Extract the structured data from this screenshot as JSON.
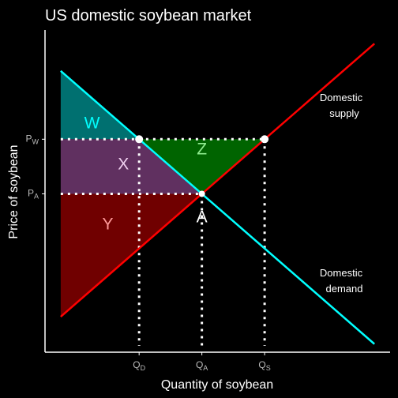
{
  "chart_data": {
    "type": "line",
    "title": "US domestic soybean market",
    "xlabel": "Quantity of soybean",
    "ylabel": "Price of soybean",
    "grid": false,
    "legend": "none",
    "x_ticks": [
      {
        "main": "Q",
        "sub": "D",
        "x": 3
      },
      {
        "main": "Q",
        "sub": "A",
        "x": 5
      },
      {
        "main": "Q",
        "sub": "S",
        "x": 7
      }
    ],
    "y_ticks": [
      {
        "main": "P",
        "sub": "W",
        "y": 7
      },
      {
        "main": "P",
        "sub": "A",
        "y": 5
      }
    ],
    "series": [
      {
        "name": "Domestic supply",
        "label_lines": [
          "Domestic",
          "supply"
        ],
        "color": "#ff0000",
        "x": [
          0.5,
          10.5
        ],
        "y": [
          0.5,
          10.5
        ]
      },
      {
        "name": "Domestic demand",
        "label_lines": [
          "Domestic",
          "demand"
        ],
        "color": "#00ffff",
        "x": [
          0.5,
          10.5
        ],
        "y": [
          9.5,
          -0.5
        ]
      }
    ],
    "regions": [
      {
        "label": "W",
        "color": "#007070",
        "label_color": "#00ffff",
        "points": [
          [
            0.5,
            9.5
          ],
          [
            3,
            7
          ],
          [
            0.5,
            7
          ]
        ],
        "label_at": [
          1.5,
          7.4
        ]
      },
      {
        "label": "X",
        "color": "#603060",
        "label_color": "#f0d0f0",
        "points": [
          [
            0.5,
            7
          ],
          [
            3,
            7
          ],
          [
            5,
            5
          ],
          [
            0.5,
            5
          ]
        ],
        "label_at": [
          2.5,
          5.9
        ]
      },
      {
        "label": "Y",
        "color": "#700000",
        "label_color": "#ff9999",
        "points": [
          [
            0.5,
            5
          ],
          [
            5,
            5
          ],
          [
            0.5,
            0.5
          ]
        ],
        "label_at": [
          2,
          3.7
        ]
      },
      {
        "label": "Z",
        "color": "#006400",
        "label_color": "#90ee90",
        "points": [
          [
            3,
            7
          ],
          [
            7,
            7
          ],
          [
            5,
            5
          ]
        ],
        "label_at": [
          5,
          6.45
        ]
      }
    ],
    "points": [
      {
        "label": "",
        "x": 3,
        "y": 7
      },
      {
        "label": "",
        "x": 7,
        "y": 7
      },
      {
        "label": "A",
        "x": 5,
        "y": 5
      }
    ],
    "price_line": {
      "y": 7,
      "x_start": 0.5,
      "x_end": 7
    },
    "autarky_line": {
      "y": 5,
      "x_start": 0.5,
      "x_end": 5
    },
    "xlim": [
      0,
      11
    ],
    "ylim": [
      -0.8,
      11
    ]
  }
}
